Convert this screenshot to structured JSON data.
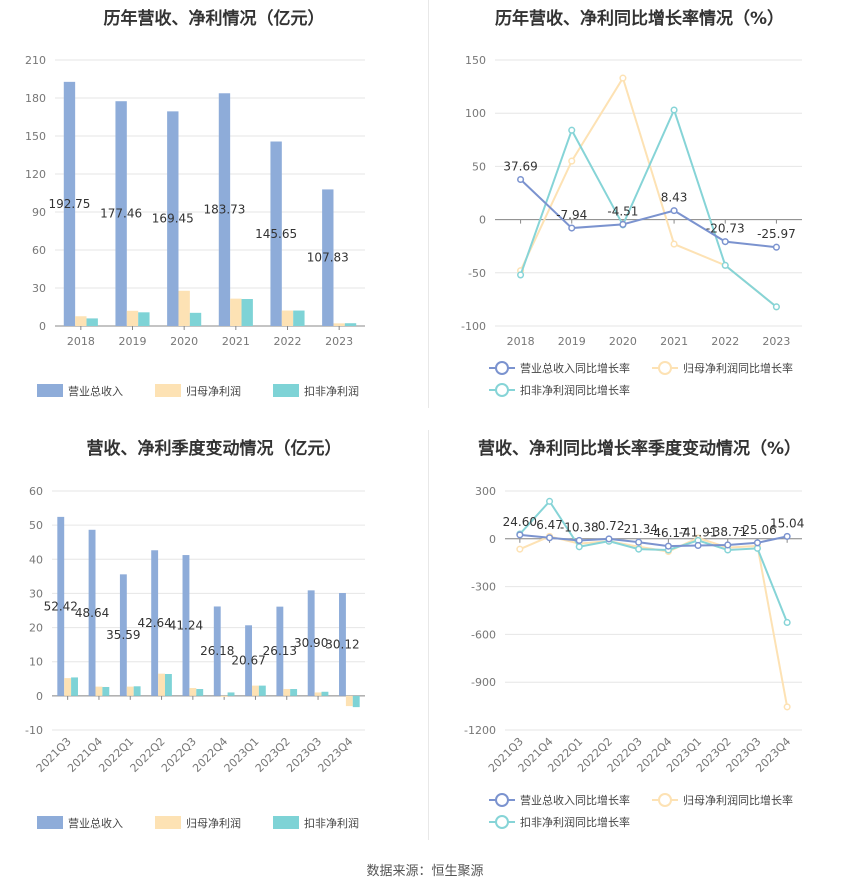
{
  "source": "数据来源：恒生聚源",
  "charts": [
    {
      "title": "历年营收、净利情况（亿元）",
      "chart_data": {
        "type": "bar",
        "categories": [
          "2018",
          "2019",
          "2020",
          "2021",
          "2022",
          "2023"
        ],
        "ylim": [
          0,
          210
        ],
        "yticks": [
          0,
          30,
          60,
          90,
          120,
          150,
          180,
          210
        ],
        "series": [
          {
            "name": "营业总收入",
            "values": [
              192.75,
              177.46,
              169.45,
              183.73,
              145.65,
              107.83
            ],
            "color": "#8eacd9",
            "labels": [
              "192.75",
              "177.46",
              "169.45",
              "183.73",
              "145.65",
              "107.83"
            ]
          },
          {
            "name": "归母净利润",
            "values": [
              7.7,
              12.0,
              27.8,
              21.6,
              12.2,
              2.1
            ],
            "color": "#fde2b4"
          },
          {
            "name": "扣非净利润",
            "values": [
              6.0,
              10.8,
              10.4,
              21.3,
              12.2,
              2.2
            ],
            "color": "#7ed3d6"
          }
        ]
      }
    },
    {
      "title": "历年营收、净利同比增长率情况（%）",
      "chart_data": {
        "type": "line",
        "categories": [
          "2018",
          "2019",
          "2020",
          "2021",
          "2022",
          "2023"
        ],
        "ylim": [
          -100,
          150
        ],
        "yticks": [
          -100,
          -50,
          0,
          50,
          100,
          150
        ],
        "series": [
          {
            "name": "营业总收入同比增长率",
            "values": [
              37.69,
              -7.94,
              -4.51,
              8.43,
              -20.73,
              -25.97
            ],
            "color": "#7b93cf",
            "labels": [
              "37.69",
              "-7.94",
              "-4.51",
              "8.43",
              "-20.73",
              "-25.97"
            ]
          },
          {
            "name": "归母净利润同比增长率",
            "values": [
              -48,
              55,
              133,
              -23,
              -43,
              -82
            ],
            "color": "#fde2b4"
          },
          {
            "name": "扣非净利润同比增长率",
            "values": [
              -52,
              84,
              -5,
              103,
              -43,
              -82
            ],
            "color": "#86d4d7"
          }
        ]
      }
    },
    {
      "title": "营收、净利季度变动情况（亿元）",
      "chart_data": {
        "type": "bar",
        "categories": [
          "2021Q3",
          "2021Q4",
          "2022Q1",
          "2022Q2",
          "2022Q3",
          "2022Q4",
          "2023Q1",
          "2023Q2",
          "2023Q3",
          "2023Q4"
        ],
        "ylim": [
          -10,
          60
        ],
        "yticks": [
          -10,
          0,
          10,
          20,
          30,
          40,
          50,
          60
        ],
        "series": [
          {
            "name": "营业总收入",
            "values": [
              52.42,
              48.64,
              35.59,
              42.64,
              41.24,
              26.18,
              20.67,
              26.13,
              30.9,
              30.12
            ],
            "color": "#8eacd9",
            "labels": [
              "52.42",
              "48.64",
              "35.59",
              "42.64",
              "41.24",
              "26.18",
              "20.67",
              "26.13",
              "30.90",
              "30.12"
            ]
          },
          {
            "name": "归母净利润",
            "values": [
              5.2,
              2.7,
              2.7,
              6.5,
              2.3,
              -0.3,
              3.0,
              2.0,
              1.0,
              -3.0
            ],
            "color": "#fde2b4"
          },
          {
            "name": "扣非净利润",
            "values": [
              5.4,
              2.6,
              2.8,
              6.4,
              2.0,
              1.0,
              3.0,
              2.0,
              1.2,
              -3.3
            ],
            "color": "#7ed3d6"
          }
        ]
      }
    },
    {
      "title": "营收、净利同比增长率季度变动情况（%）",
      "chart_data": {
        "type": "line",
        "categories": [
          "2021Q3",
          "2021Q4",
          "2022Q1",
          "2022Q2",
          "2022Q3",
          "2022Q4",
          "2023Q1",
          "2023Q2",
          "2023Q3",
          "2023Q4"
        ],
        "ylim": [
          -1200,
          300
        ],
        "yticks": [
          -1200,
          -900,
          -600,
          -300,
          0,
          300
        ],
        "series": [
          {
            "name": "营业总收入同比增长率",
            "values": [
              24.6,
              6.47,
              -10.38,
              -0.72,
              -21.34,
              -46.17,
              -41.91,
              -38.71,
              -25.06,
              15.04
            ],
            "color": "#7b93cf",
            "labels": [
              "24.60",
              "6.47",
              "-10.38",
              "-0.72",
              "-21.34",
              "-46.17",
              "-41.91",
              "-38.71",
              "-25.06",
              "15.04"
            ]
          },
          {
            "name": "归母净利润同比增长率",
            "values": [
              -65,
              15,
              -30,
              -15,
              -50,
              -80,
              5,
              -55,
              -45,
              -1055
            ],
            "color": "#fde2b4"
          },
          {
            "name": "扣非净利润同比增长率",
            "values": [
              30,
              235,
              -50,
              -15,
              -65,
              -70,
              -10,
              -70,
              -60,
              -525
            ],
            "color": "#86d4d7"
          }
        ]
      }
    }
  ]
}
